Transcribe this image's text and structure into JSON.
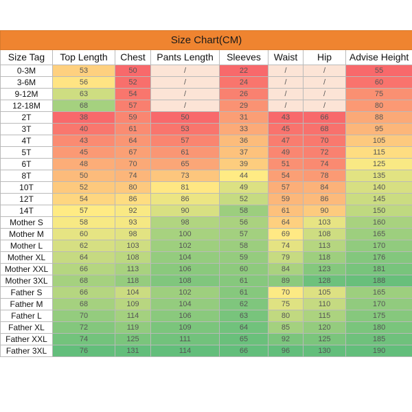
{
  "title": "Size Chart(CM)",
  "headers": [
    "Size Tag",
    "Top Length",
    "Chest",
    "Pants Length",
    "Sleeves",
    "Waist",
    "Hip",
    "Advise Height"
  ],
  "rows": [
    [
      "0-3M",
      "53",
      "50",
      "/",
      "22",
      "/",
      "/",
      "55"
    ],
    [
      "3-6M",
      "56",
      "52",
      "/",
      "24",
      "/",
      "/",
      "60"
    ],
    [
      "9-12M",
      "63",
      "54",
      "/",
      "26",
      "/",
      "/",
      "75"
    ],
    [
      "12-18M",
      "68",
      "57",
      "/",
      "29",
      "/",
      "/",
      "80"
    ],
    [
      "2T",
      "38",
      "59",
      "50",
      "31",
      "43",
      "66",
      "88"
    ],
    [
      "3T",
      "40",
      "61",
      "53",
      "33",
      "45",
      "68",
      "95"
    ],
    [
      "4T",
      "43",
      "64",
      "57",
      "36",
      "47",
      "70",
      "105"
    ],
    [
      "5T",
      "45",
      "67",
      "61",
      "37",
      "49",
      "72",
      "115"
    ],
    [
      "6T",
      "48",
      "70",
      "65",
      "39",
      "51",
      "74",
      "125"
    ],
    [
      "8T",
      "50",
      "74",
      "73",
      "44",
      "54",
      "78",
      "135"
    ],
    [
      "10T",
      "52",
      "80",
      "81",
      "49",
      "57",
      "84",
      "140"
    ],
    [
      "12T",
      "54",
      "86",
      "86",
      "52",
      "59",
      "86",
      "145"
    ],
    [
      "14T",
      "57",
      "92",
      "90",
      "58",
      "61",
      "90",
      "150"
    ],
    [
      "Mother S",
      "58",
      "93",
      "98",
      "56",
      "64",
      "103",
      "160"
    ],
    [
      "Mother M",
      "60",
      "98",
      "100",
      "57",
      "69",
      "108",
      "165"
    ],
    [
      "Mother L",
      "62",
      "103",
      "102",
      "58",
      "74",
      "113",
      "170"
    ],
    [
      "Mother XL",
      "64",
      "108",
      "104",
      "59",
      "79",
      "118",
      "176"
    ],
    [
      "Mother XXL",
      "66",
      "113",
      "106",
      "60",
      "84",
      "123",
      "181"
    ],
    [
      "Mother 3XL",
      "68",
      "118",
      "108",
      "61",
      "89",
      "128",
      "188"
    ],
    [
      "Father S",
      "66",
      "104",
      "102",
      "61",
      "70",
      "105",
      "165"
    ],
    [
      "Father M",
      "68",
      "109",
      "104",
      "62",
      "75",
      "110",
      "170"
    ],
    [
      "Father L",
      "70",
      "114",
      "106",
      "63",
      "80",
      "115",
      "175"
    ],
    [
      "Father XL",
      "72",
      "119",
      "109",
      "64",
      "85",
      "120",
      "180"
    ],
    [
      "Father XXL",
      "74",
      "125",
      "111",
      "65",
      "92",
      "125",
      "185"
    ],
    [
      "Father 3XL",
      "76",
      "131",
      "114",
      "66",
      "96",
      "130",
      "190"
    ]
  ],
  "colors": {
    "title_bg": "#ef8430",
    "slash_cell": "#fce4d6",
    "scale_low": "#f8696b",
    "scale_mid": "#ffeb84",
    "scale_high": "#63be7b"
  }
}
